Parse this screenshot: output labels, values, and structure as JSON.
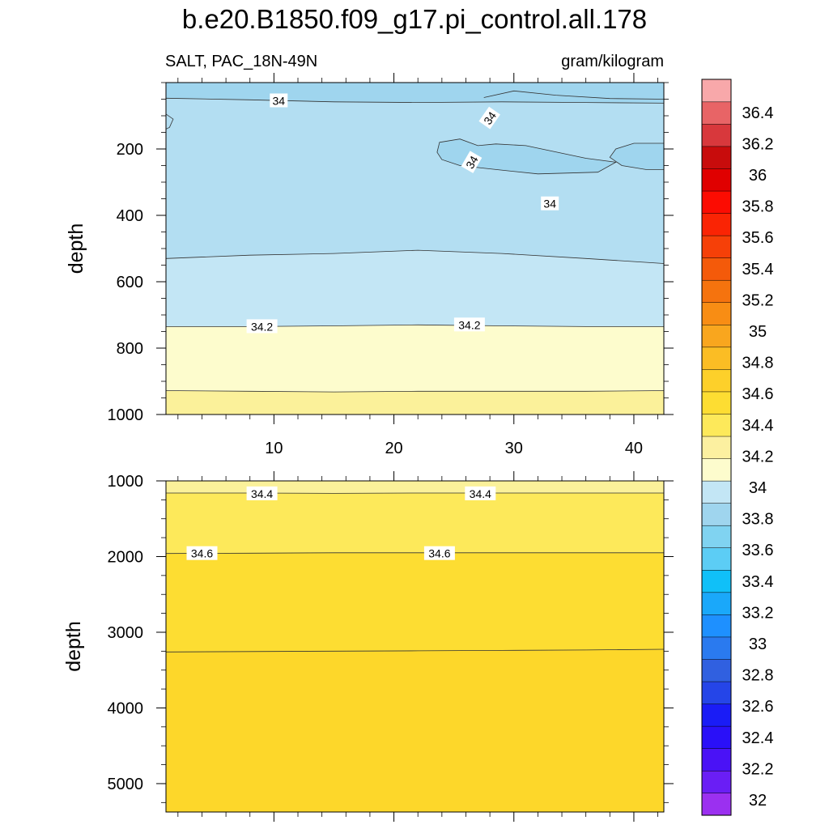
{
  "chart_data": {
    "type": "contour",
    "title": "b.e20.B1850.f09_g17.pi_control.all.178",
    "subtitle_left": "SALT, PAC_18N-49N",
    "subtitle_right": "gram/kilogram",
    "grid": false,
    "panels": [
      {
        "name": "upper",
        "ylabel": "depth",
        "xlim": [
          1,
          42.5
        ],
        "ylim": [
          0,
          1000
        ],
        "y_reversed": true,
        "yticks": [
          200,
          400,
          600,
          800,
          1000
        ],
        "xticks": [
          10,
          20,
          30,
          40
        ],
        "regions": [
          {
            "color": "#9fd5ee",
            "top": [
              0,
              0,
              0,
              0,
              0,
              0,
              0
            ],
            "bottom": [
              47,
              52,
              58,
              60,
              58,
              60,
              62
            ],
            "note": "33.8-34"
          },
          {
            "color": "#b3def2",
            "top": [
              47,
              52,
              58,
              60,
              58,
              60,
              62
            ],
            "bottom": [
              530,
              520,
              515,
              505,
              515,
              530,
              545
            ]
          },
          {
            "color": "#c3e6f5",
            "top": [
              530,
              520,
              515,
              505,
              515,
              530,
              545
            ],
            "bottom": [
              735,
              735,
              733,
              730,
              733,
              735,
              735
            ]
          },
          {
            "color": "#fdfccd",
            "top": [
              735,
              735,
              733,
              730,
              733,
              735,
              735
            ],
            "bottom": [
              928,
              930,
              932,
              930,
              930,
              930,
              928
            ]
          },
          {
            "color": "#fbf19a",
            "top": [
              928,
              930,
              932,
              930,
              930,
              930,
              928
            ],
            "bottom": [
              1000,
              1000,
              1000,
              1000,
              1000,
              1000,
              1000
            ]
          }
        ],
        "region_x": [
          1,
          8,
          15,
          22,
          29,
          36,
          42.5
        ],
        "contour_labels": [
          {
            "text": "34",
            "x": 10.4,
            "y": 55
          },
          {
            "text": "34",
            "x": 28.0,
            "y": 107,
            "rotate": -55
          },
          {
            "text": "34",
            "x": 26.5,
            "y": 240,
            "rotate": -60
          },
          {
            "text": "34",
            "x": 33.0,
            "y": 365
          },
          {
            "text": "34.2",
            "x": 9.0,
            "y": 735
          },
          {
            "text": "34.2",
            "x": 26.3,
            "y": 730
          }
        ]
      },
      {
        "name": "lower",
        "ylabel": "depth",
        "xlim": [
          1,
          42.5
        ],
        "ylim": [
          1000,
          5375
        ],
        "y_reversed": true,
        "yticks": [
          1000,
          2000,
          3000,
          4000,
          5000
        ],
        "regions": [
          {
            "color": "#fbf19a",
            "top": [
              1000,
              1000,
              1000,
              1000,
              1000,
              1000,
              1000
            ],
            "bottom": [
              1160,
              1160,
              1165,
              1160,
              1160,
              1160,
              1160
            ]
          },
          {
            "color": "#fde95a",
            "top": [
              1160,
              1160,
              1165,
              1160,
              1160,
              1160,
              1160
            ],
            "bottom": [
              1960,
              1955,
              1950,
              1950,
              1950,
              1950,
              1950
            ]
          },
          {
            "color": "#fddd32",
            "top": [
              1960,
              1955,
              1950,
              1950,
              1950,
              1950,
              1950
            ],
            "bottom": [
              3260,
              3255,
              3250,
              3245,
              3240,
              3235,
              3225
            ]
          },
          {
            "color": "#fdd72a",
            "top": [
              3260,
              3255,
              3250,
              3245,
              3240,
              3235,
              3225
            ],
            "bottom": [
              5375,
              5375,
              5375,
              5375,
              5375,
              5375,
              5375
            ]
          }
        ],
        "region_x": [
          1,
          8,
          15,
          22,
          29,
          36,
          42.5
        ],
        "contour_labels": [
          {
            "text": "34.4",
            "x": 9.0,
            "y": 1170
          },
          {
            "text": "34.4",
            "x": 27.2,
            "y": 1170
          },
          {
            "text": "34.6",
            "x": 4.0,
            "y": 1960
          },
          {
            "text": "34.6",
            "x": 23.8,
            "y": 1960
          }
        ]
      }
    ],
    "colorbar": {
      "levels": [
        "32",
        "32.2",
        "32.4",
        "32.6",
        "32.8",
        "33",
        "33.2",
        "33.4",
        "33.6",
        "33.8",
        "34",
        "34.2",
        "34.4",
        "34.6",
        "34.8",
        "35",
        "35.2",
        "35.4",
        "35.6",
        "35.8",
        "36",
        "36.2",
        "36.4"
      ],
      "colors": [
        "#9b30f0",
        "#6a1ef5",
        "#4a12f6",
        "#2a10f8",
        "#1a1cf6",
        "#2545e8",
        "#3060e0",
        "#2a7aef",
        "#1e90ff",
        "#1aa8fa",
        "#10c0f8",
        "#5ccdf5",
        "#80d3f1",
        "#9fd5ee",
        "#c3e6f5",
        "#fdfccd",
        "#fcf0a0",
        "#fde95a",
        "#fddd32",
        "#fdd02a",
        "#fbbd24",
        "#f9a61e",
        "#f88d14",
        "#f5730e",
        "#f45a0a",
        "#f64008",
        "#fa2404",
        "#fc0c02",
        "#e00000",
        "#c80c0c",
        "#d8383c",
        "#e86466",
        "#f8a8aa"
      ]
    }
  }
}
